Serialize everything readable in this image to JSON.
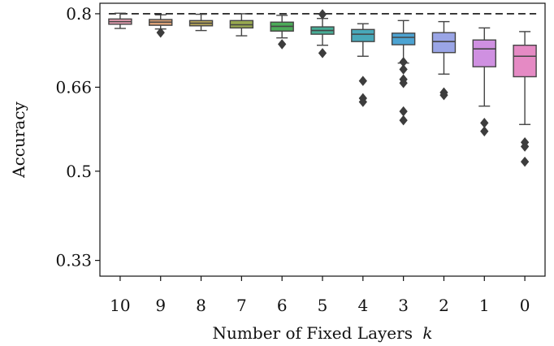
{
  "chart_data": {
    "type": "box",
    "title": "",
    "xlabel": "Number of Fixed Layers",
    "xlabel_var": "k",
    "ylabel": "Accuracy",
    "ylim": [
      0.3,
      0.82
    ],
    "yticks": [
      0.33,
      0.5,
      0.66,
      0.8
    ],
    "ytick_labels": [
      "0.33",
      "0.5",
      "0.66",
      "0.8"
    ],
    "reference_line": {
      "y": 0.8,
      "style": "dashed"
    },
    "grid": false,
    "legend": "none",
    "categories": [
      "10",
      "9",
      "8",
      "7",
      "6",
      "5",
      "4",
      "3",
      "2",
      "1",
      "0"
    ],
    "boxes": [
      {
        "category": "10",
        "color": "#e8a0b4",
        "whisker_low": 0.772,
        "q1": 0.78,
        "median": 0.785,
        "q3": 0.79,
        "whisker_high": 0.801,
        "outliers": []
      },
      {
        "category": "9",
        "color": "#d9a076",
        "whisker_low": 0.771,
        "q1": 0.778,
        "median": 0.784,
        "q3": 0.789,
        "whisker_high": 0.798,
        "outliers": [
          0.764
        ]
      },
      {
        "category": "8",
        "color": "#b8a65a",
        "whisker_low": 0.768,
        "q1": 0.777,
        "median": 0.782,
        "q3": 0.787,
        "whisker_high": 0.799,
        "outliers": []
      },
      {
        "category": "7",
        "color": "#98a850",
        "whisker_low": 0.758,
        "q1": 0.773,
        "median": 0.779,
        "q3": 0.787,
        "whisker_high": 0.8,
        "outliers": []
      },
      {
        "category": "6",
        "color": "#4caa58",
        "whisker_low": 0.754,
        "q1": 0.767,
        "median": 0.776,
        "q3": 0.784,
        "whisker_high": 0.797,
        "outliers": [
          0.742
        ]
      },
      {
        "category": "5",
        "color": "#47ad96",
        "whisker_low": 0.74,
        "q1": 0.761,
        "median": 0.768,
        "q3": 0.775,
        "whisker_high": 0.791,
        "outliers": [
          0.725,
          0.799
        ]
      },
      {
        "category": "4",
        "color": "#48a8b9",
        "whisker_low": 0.719,
        "q1": 0.747,
        "median": 0.761,
        "q3": 0.77,
        "whisker_high": 0.781,
        "outliers": [
          0.672,
          0.639,
          0.632
        ]
      },
      {
        "category": "3",
        "color": "#4ca3d2",
        "whisker_low": 0.706,
        "q1": 0.741,
        "median": 0.755,
        "q3": 0.763,
        "whisker_high": 0.787,
        "outliers": [
          0.708,
          0.694,
          0.675,
          0.668,
          0.614,
          0.597
        ]
      },
      {
        "category": "2",
        "color": "#9aa5e6",
        "whisker_low": 0.685,
        "q1": 0.726,
        "median": 0.747,
        "q3": 0.764,
        "whisker_high": 0.785,
        "outliers": [
          0.65,
          0.645
        ]
      },
      {
        "category": "1",
        "color": "#cf90e1",
        "whisker_low": 0.624,
        "q1": 0.699,
        "median": 0.733,
        "q3": 0.75,
        "whisker_high": 0.773,
        "outliers": [
          0.592,
          0.576
        ]
      },
      {
        "category": "0",
        "color": "#e58ac4",
        "whisker_low": 0.589,
        "q1": 0.68,
        "median": 0.719,
        "q3": 0.74,
        "whisker_high": 0.766,
        "outliers": [
          0.555,
          0.547,
          0.518
        ]
      }
    ]
  }
}
